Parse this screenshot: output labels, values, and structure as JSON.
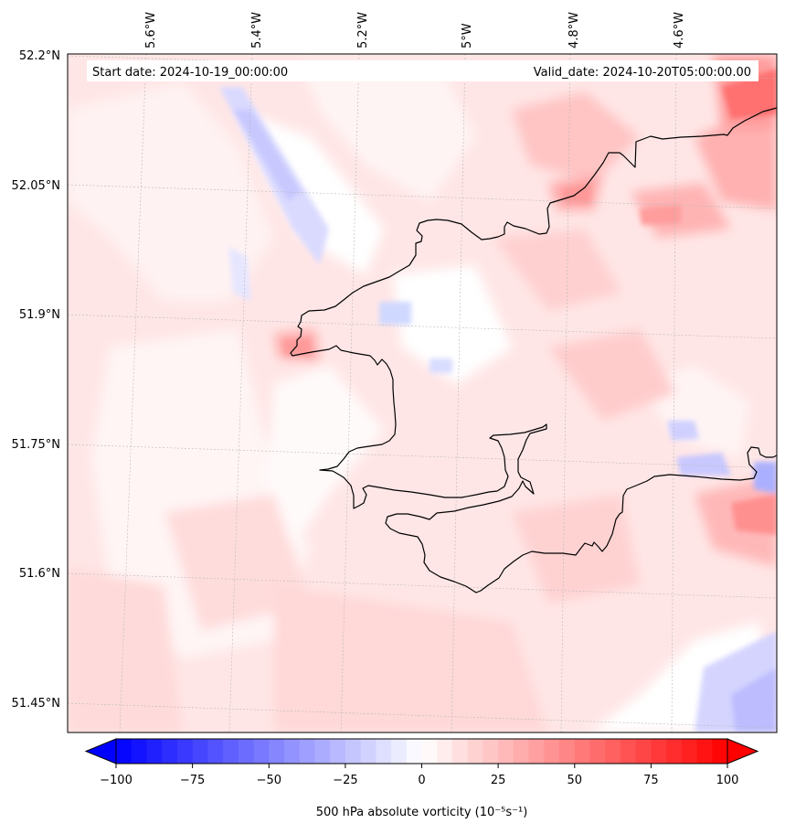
{
  "header": {
    "start_date": "Start date: 2024-10-19_00:00:00",
    "valid_date": "Valid_date: 2024-10-20T05:00:00.00"
  },
  "map": {
    "longitude_labels": [
      "5.6°W",
      "5.4°W",
      "5.2°W",
      "5°W",
      "4.8°W",
      "4.6°W"
    ],
    "latitude_labels": [
      "52.2°N",
      "52.05°N",
      "51.9°N",
      "51.75°N",
      "51.6°N",
      "51.45°N"
    ],
    "colors": {
      "negative": "#0000ff",
      "neutral": "#ffffff",
      "positive": "#ff0000",
      "background_field": "#ffe3e3",
      "coastline": "#000000"
    }
  },
  "colorbar": {
    "tick_labels": [
      "−100",
      "−75",
      "−50",
      "−25",
      "0",
      "25",
      "50",
      "75",
      "100"
    ],
    "label": "500 hPa absolute vorticity",
    "unit": "(10⁻⁵s⁻¹)"
  }
}
